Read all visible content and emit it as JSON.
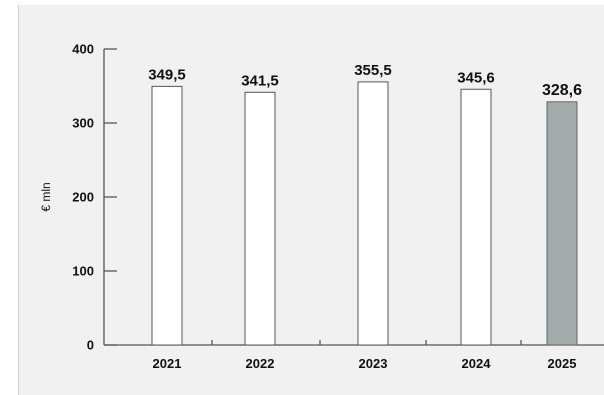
{
  "chart_data": {
    "type": "bar",
    "ylabel": "€ mln",
    "categories": [
      "2021",
      "2022",
      "2023",
      "2024",
      "2025"
    ],
    "values": [
      349.5,
      341.5,
      355.5,
      345.6,
      328.6
    ],
    "value_labels": [
      "349,5",
      "341,5",
      "355,5",
      "345,6",
      "328,6"
    ],
    "highlight_index": 4,
    "yticks": [
      0,
      100,
      200,
      300,
      400
    ],
    "ylim": [
      0,
      400
    ],
    "grid": false,
    "legend": "none",
    "colors": {
      "bar_fill": "#ffffff",
      "bar_stroke": "#555555",
      "highlight_fill": "#a3acab",
      "highlight_stroke": "#5f6766",
      "axis": "#555555",
      "panel_bg": "#f1f1f1"
    }
  }
}
